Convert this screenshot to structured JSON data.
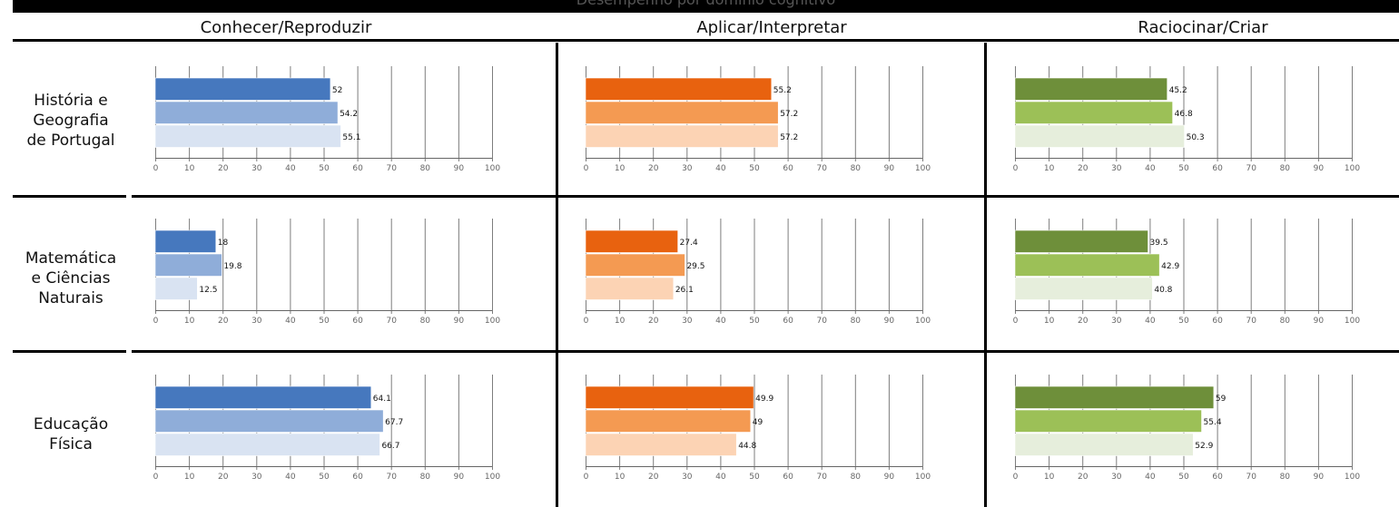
{
  "title": "Desempenho por domínio cognitivo",
  "columns": [
    "Conhecer/Reproduzir",
    "Aplicar/Interpretar",
    "Raciocinar/Criar"
  ],
  "rows": [
    {
      "label_lines": [
        "História e",
        "Geografia",
        "de Portugal"
      ]
    },
    {
      "label_lines": [
        "Matemática",
        "e Ciências",
        "Naturais"
      ]
    },
    {
      "label_lines": [
        "Educação",
        "Física"
      ]
    }
  ],
  "colors": {
    "blue": [
      "#4678be",
      "#8fadd9",
      "#d9e3f2"
    ],
    "orange": [
      "#e8620f",
      "#f49a52",
      "#fcd3b4"
    ],
    "green": [
      "#6e8f3a",
      "#9cc057",
      "#e6eedc"
    ]
  },
  "chart_data": [
    {
      "type": "bar",
      "orientation": "horizontal",
      "row": "História e Geografia de Portugal",
      "column": "Conhecer/Reproduzir",
      "values": [
        52,
        54.2,
        55.1
      ],
      "xlim": [
        0,
        100
      ],
      "ticks": [
        0,
        10,
        20,
        30,
        40,
        50,
        60,
        70,
        80,
        90,
        100
      ],
      "palette": "blue"
    },
    {
      "type": "bar",
      "orientation": "horizontal",
      "row": "História e Geografia de Portugal",
      "column": "Aplicar/Interpretar",
      "values": [
        55.2,
        57.2,
        57.2
      ],
      "xlim": [
        0,
        100
      ],
      "ticks": [
        0,
        10,
        20,
        30,
        40,
        50,
        60,
        70,
        80,
        90,
        100
      ],
      "palette": "orange"
    },
    {
      "type": "bar",
      "orientation": "horizontal",
      "row": "História e Geografia de Portugal",
      "column": "Raciocinar/Criar",
      "values": [
        45.2,
        46.8,
        50.3
      ],
      "xlim": [
        0,
        100
      ],
      "ticks": [
        0,
        10,
        20,
        30,
        40,
        50,
        60,
        70,
        80,
        90,
        100
      ],
      "palette": "green"
    },
    {
      "type": "bar",
      "orientation": "horizontal",
      "row": "Matemática e Ciências Naturais",
      "column": "Conhecer/Reproduzir",
      "values": [
        18,
        19.8,
        12.5
      ],
      "xlim": [
        0,
        100
      ],
      "ticks": [
        0,
        10,
        20,
        30,
        40,
        50,
        60,
        70,
        80,
        90,
        100
      ],
      "palette": "blue"
    },
    {
      "type": "bar",
      "orientation": "horizontal",
      "row": "Matemática e Ciências Naturais",
      "column": "Aplicar/Interpretar",
      "values": [
        27.4,
        29.5,
        26.1
      ],
      "xlim": [
        0,
        100
      ],
      "ticks": [
        0,
        10,
        20,
        30,
        40,
        50,
        60,
        70,
        80,
        90,
        100
      ],
      "palette": "orange"
    },
    {
      "type": "bar",
      "orientation": "horizontal",
      "row": "Matemática e Ciências Naturais",
      "column": "Raciocinar/Criar",
      "values": [
        39.5,
        42.9,
        40.8
      ],
      "xlim": [
        0,
        100
      ],
      "ticks": [
        0,
        10,
        20,
        30,
        40,
        50,
        60,
        70,
        80,
        90,
        100
      ],
      "palette": "green"
    },
    {
      "type": "bar",
      "orientation": "horizontal",
      "row": "Educação Física",
      "column": "Conhecer/Reproduzir",
      "values": [
        64.1,
        67.7,
        66.7
      ],
      "xlim": [
        0,
        100
      ],
      "ticks": [
        0,
        10,
        20,
        30,
        40,
        50,
        60,
        70,
        80,
        90,
        100
      ],
      "palette": "blue"
    },
    {
      "type": "bar",
      "orientation": "horizontal",
      "row": "Educação Física",
      "column": "Aplicar/Interpretar",
      "values": [
        49.9,
        49,
        44.8
      ],
      "xlim": [
        0,
        100
      ],
      "ticks": [
        0,
        10,
        20,
        30,
        40,
        50,
        60,
        70,
        80,
        90,
        100
      ],
      "palette": "orange"
    },
    {
      "type": "bar",
      "orientation": "horizontal",
      "row": "Educação Física",
      "column": "Raciocinar/Criar",
      "values": [
        59,
        55.4,
        52.9
      ],
      "xlim": [
        0,
        100
      ],
      "ticks": [
        0,
        10,
        20,
        30,
        40,
        50,
        60,
        70,
        80,
        90,
        100
      ],
      "palette": "green"
    }
  ]
}
